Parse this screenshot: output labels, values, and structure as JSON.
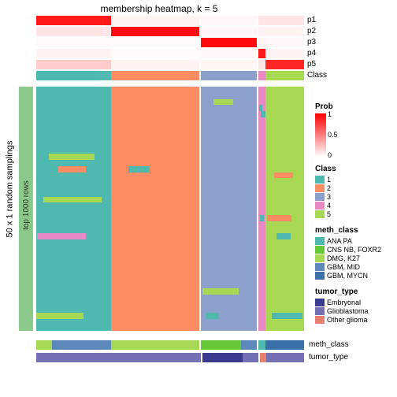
{
  "title": "membership heatmap, k = 5",
  "side_label_outer": "50 x 1 random samplings",
  "side_label_inner": "top 1000 rows",
  "row_labels": [
    "p1",
    "p2",
    "p3",
    "p4",
    "p5",
    "Class"
  ],
  "bottom_labels": [
    "meth_class",
    "tumor_type"
  ],
  "colors": {
    "white": "#ffffff",
    "red": "#ff0000",
    "pink_light": "#ffcccc",
    "class1": "#4fb9af",
    "class2": "#fc8d62",
    "class3": "#8da0cb",
    "class4": "#e78ac3",
    "class5": "#a6d854",
    "meth_ana": "#4fb9af",
    "meth_cns": "#66c837",
    "meth_dmg": "#a6d854",
    "meth_gbm_mid": "#5c88bc",
    "meth_gbm_mycn": "#3a6fa8",
    "tumor_emb": "#3a3a8f",
    "tumor_glio": "#7570b3",
    "tumor_other": "#e7816f",
    "left_strip": "#8bc98b",
    "background": "#ffffff"
  },
  "prob_legend": {
    "title": "Prob",
    "ticks": [
      "1",
      "0.5",
      "0"
    ],
    "grad": [
      "#ff0000",
      "#ffffff"
    ]
  },
  "class_legend": {
    "title": "Class",
    "items": [
      {
        "label": "1",
        "c": "class1"
      },
      {
        "label": "2",
        "c": "class2"
      },
      {
        "label": "3",
        "c": "class3"
      },
      {
        "label": "4",
        "c": "class4"
      },
      {
        "label": "5",
        "c": "class5"
      }
    ]
  },
  "meth_legend": {
    "title": "meth_class",
    "items": [
      {
        "label": "ANA PA",
        "c": "meth_ana"
      },
      {
        "label": "CNS NB, FOXR2",
        "c": "meth_cns"
      },
      {
        "label": "DMG, K27",
        "c": "meth_dmg"
      },
      {
        "label": "GBM, MID",
        "c": "meth_gbm_mid"
      },
      {
        "label": "GBM, MYCN",
        "c": "meth_gbm_mycn"
      }
    ]
  },
  "tumor_legend": {
    "title": "tumor_type",
    "items": [
      {
        "label": "Embryonal",
        "c": "tumor_emb"
      },
      {
        "label": "Glioblastoma",
        "c": "tumor_glio"
      },
      {
        "label": "Other glioma",
        "c": "tumor_other"
      }
    ]
  },
  "class_segments": [
    {
      "w": 0.28,
      "c": "class1"
    },
    {
      "w": 0.33,
      "c": "class2"
    },
    {
      "w": 0.005,
      "c": "white"
    },
    {
      "w": 0.21,
      "c": "class3"
    },
    {
      "w": 0.005,
      "c": "white"
    },
    {
      "w": 0.025,
      "c": "class4"
    },
    {
      "w": 0.145,
      "c": "class5"
    }
  ],
  "prob_tracks": [
    [
      {
        "w": 0.28,
        "v": 0.9
      },
      {
        "w": 0.33,
        "v": 0.05
      },
      {
        "w": 0.005,
        "v": 0
      },
      {
        "w": 0.21,
        "v": 0.03
      },
      {
        "w": 0.005,
        "v": 0
      },
      {
        "w": 0.025,
        "v": 0.1
      },
      {
        "w": 0.145,
        "v": 0.1
      }
    ],
    [
      {
        "w": 0.28,
        "v": 0.1
      },
      {
        "w": 0.33,
        "v": 0.95
      },
      {
        "w": 0.005,
        "v": 0
      },
      {
        "w": 0.21,
        "v": 0.03
      },
      {
        "w": 0.005,
        "v": 0
      },
      {
        "w": 0.025,
        "v": 0.05
      },
      {
        "w": 0.145,
        "v": 0.05
      }
    ],
    [
      {
        "w": 0.28,
        "v": 0.02
      },
      {
        "w": 0.33,
        "v": 0.02
      },
      {
        "w": 0.005,
        "v": 0
      },
      {
        "w": 0.21,
        "v": 0.95
      },
      {
        "w": 0.005,
        "v": 0
      },
      {
        "w": 0.025,
        "v": 0.05
      },
      {
        "w": 0.145,
        "v": 0.03
      }
    ],
    [
      {
        "w": 0.28,
        "v": 0.05
      },
      {
        "w": 0.33,
        "v": 0.02
      },
      {
        "w": 0.005,
        "v": 0
      },
      {
        "w": 0.21,
        "v": 0.03
      },
      {
        "w": 0.005,
        "v": 0
      },
      {
        "w": 0.025,
        "v": 0.9
      },
      {
        "w": 0.145,
        "v": 0.05
      }
    ],
    [
      {
        "w": 0.28,
        "v": 0.2
      },
      {
        "w": 0.33,
        "v": 0.05
      },
      {
        "w": 0.005,
        "v": 0
      },
      {
        "w": 0.21,
        "v": 0.04
      },
      {
        "w": 0.005,
        "v": 0
      },
      {
        "w": 0.025,
        "v": 0.1
      },
      {
        "w": 0.145,
        "v": 0.85
      }
    ]
  ],
  "heatmap_blocks": [
    {
      "w": 0.28,
      "base": "class1",
      "noise": [
        "class5",
        "class2",
        "class4"
      ],
      "noise_pct": 0.12
    },
    {
      "w": 0.33,
      "base": "class2",
      "noise": [
        "class5",
        "class1"
      ],
      "noise_pct": 0.05
    },
    {
      "w": 0.005,
      "base": "white",
      "noise": [],
      "noise_pct": 0
    },
    {
      "w": 0.21,
      "base": "class3",
      "noise": [
        "class1",
        "class5"
      ],
      "noise_pct": 0.04
    },
    {
      "w": 0.005,
      "base": "white",
      "noise": [],
      "noise_pct": 0
    },
    {
      "w": 0.025,
      "base": "class4",
      "noise": [
        "class1"
      ],
      "noise_pct": 0.08
    },
    {
      "w": 0.145,
      "base": "class5",
      "noise": [
        "class1",
        "class2"
      ],
      "noise_pct": 0.08
    }
  ],
  "heatmap_rows": 40,
  "meth_bottom": [
    {
      "w": 0.06,
      "c": "meth_dmg"
    },
    {
      "w": 0.22,
      "c": "meth_gbm_mid"
    },
    {
      "w": 0.33,
      "c": "meth_dmg"
    },
    {
      "w": 0.005,
      "c": "white"
    },
    {
      "w": 0.15,
      "c": "meth_cns"
    },
    {
      "w": 0.06,
      "c": "meth_gbm_mid"
    },
    {
      "w": 0.005,
      "c": "white"
    },
    {
      "w": 0.025,
      "c": "meth_ana"
    },
    {
      "w": 0.145,
      "c": "meth_gbm_mycn"
    }
  ],
  "tumor_bottom": [
    {
      "w": 0.615,
      "c": "tumor_glio"
    },
    {
      "w": 0.005,
      "c": "white"
    },
    {
      "w": 0.15,
      "c": "tumor_emb"
    },
    {
      "w": 0.06,
      "c": "tumor_glio"
    },
    {
      "w": 0.005,
      "c": "white"
    },
    {
      "w": 0.025,
      "c": "tumor_other"
    },
    {
      "w": 0.14,
      "c": "tumor_glio"
    }
  ],
  "top_right_strips": [
    [
      {
        "w": 1.0,
        "v": 0.5
      }
    ],
    [
      {
        "w": 1.0,
        "v": 0.3
      }
    ],
    [
      {
        "w": 1.0,
        "v": 0.05
      }
    ],
    [
      {
        "w": 1.0,
        "v": 0.05
      }
    ],
    [
      {
        "w": 0.7,
        "v": 0.95
      },
      {
        "w": 0.3,
        "v": 0.3
      }
    ],
    [
      {
        "w": 1.0,
        "c": "class5"
      }
    ]
  ]
}
